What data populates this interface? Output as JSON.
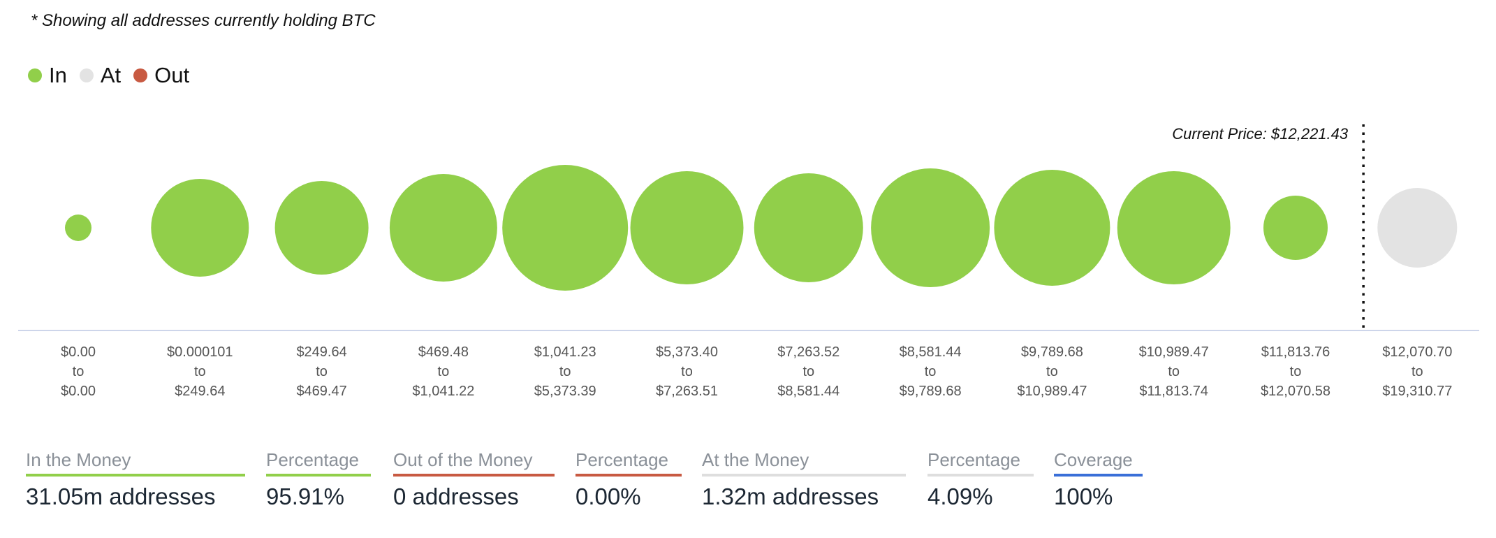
{
  "note": "* Showing all addresses currently holding BTC",
  "legend": [
    {
      "label": "In",
      "color": "#91cf4a"
    },
    {
      "label": "At",
      "color": "#e3e3e3"
    },
    {
      "label": "Out",
      "color": "#c85a42"
    }
  ],
  "chart_data": {
    "type": "bubble",
    "title": "",
    "current_price_label": "Current Price: $12,221.43",
    "current_price": 12221.43,
    "categories": [
      {
        "from": "$0.00",
        "to": "$0.00",
        "status": "In",
        "relative_size": 19
      },
      {
        "from": "$0.000101",
        "to": "$249.64",
        "status": "In",
        "relative_size": 70
      },
      {
        "from": "$249.64",
        "to": "$469.47",
        "status": "In",
        "relative_size": 67
      },
      {
        "from": "$469.48",
        "to": "$1,041.22",
        "status": "In",
        "relative_size": 77
      },
      {
        "from": "$1,041.23",
        "to": "$5,373.39",
        "status": "In",
        "relative_size": 90
      },
      {
        "from": "$5,373.40",
        "to": "$7,263.51",
        "status": "In",
        "relative_size": 81
      },
      {
        "from": "$7,263.52",
        "to": "$8,581.44",
        "status": "In",
        "relative_size": 78
      },
      {
        "from": "$8,581.44",
        "to": "$9,789.68",
        "status": "In",
        "relative_size": 85
      },
      {
        "from": "$9,789.68",
        "to": "$10,989.47",
        "status": "In",
        "relative_size": 83
      },
      {
        "from": "$10,989.47",
        "to": "$11,813.74",
        "status": "In",
        "relative_size": 81
      },
      {
        "from": "$11,813.76",
        "to": "$12,070.58",
        "status": "In",
        "relative_size": 46
      },
      {
        "from": "$12,070.70",
        "to": "$19,310.77",
        "status": "At",
        "relative_size": 57
      }
    ],
    "to_word": "to"
  },
  "stats": [
    {
      "label": "In the Money",
      "value": "31.05m addresses",
      "color": "#91cf4a"
    },
    {
      "label": "Percentage",
      "value": "95.91%",
      "color": "#91cf4a"
    },
    {
      "label": "Out of the Money",
      "value": "0 addresses",
      "color": "#c85a42"
    },
    {
      "label": "Percentage",
      "value": "0.00%",
      "color": "#c85a42"
    },
    {
      "label": "At the Money",
      "value": "1.32m addresses",
      "color": "#dedede"
    },
    {
      "label": "Percentage",
      "value": "4.09%",
      "color": "#dedede"
    },
    {
      "label": "Coverage",
      "value": "100%",
      "color": "#3a6fd8"
    }
  ]
}
